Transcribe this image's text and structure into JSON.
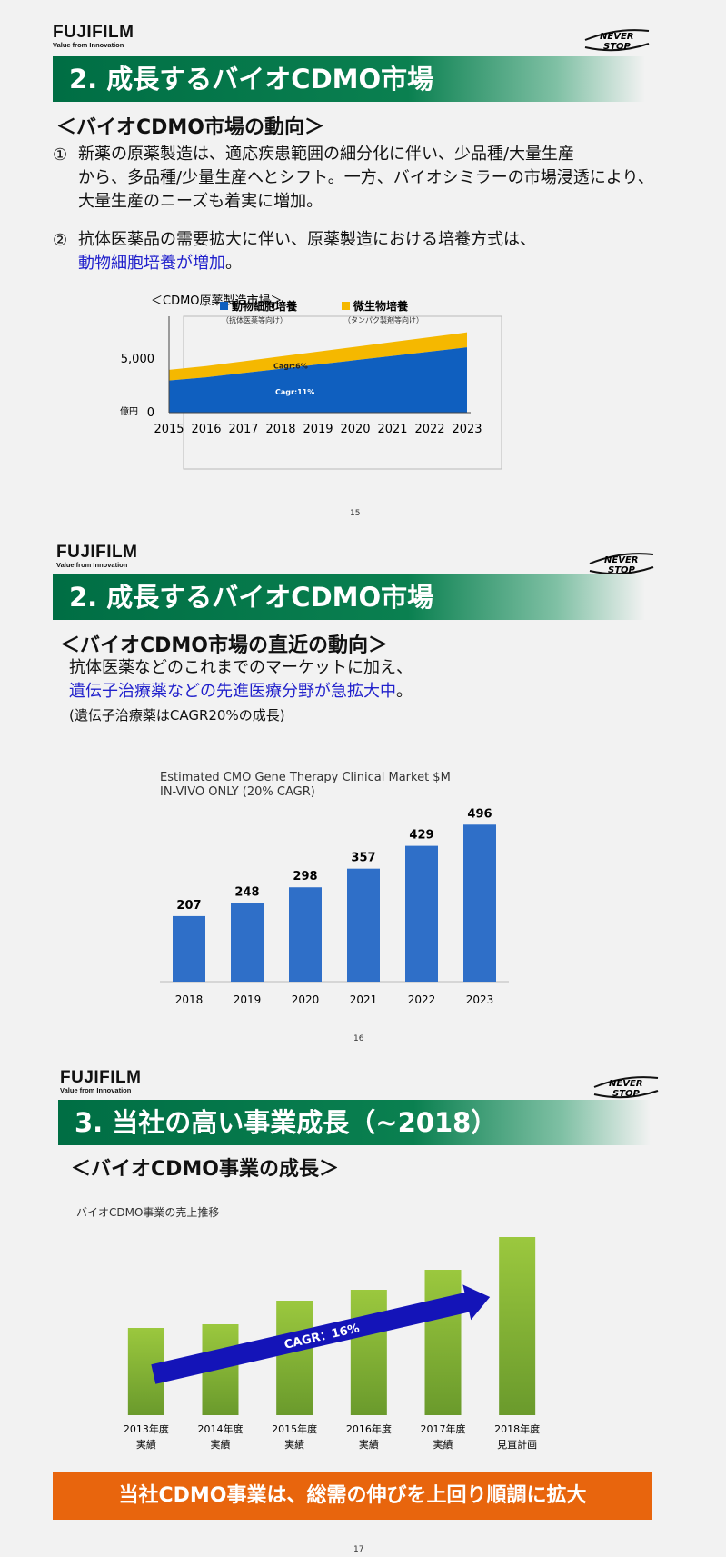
{
  "brand": {
    "name": "FUJIFILM",
    "tagline": "Value from Innovation",
    "never_stop_line1": "NEVER",
    "never_stop_line2": "STOP"
  },
  "slide1": {
    "title": "2. 成長するバイオCDMO市場",
    "heading": "＜バイオCDMO市場の動向＞",
    "item1_num": "①",
    "item1_line1": "新薬の原薬製造は、適応疾患範囲の細分化に伴い、少品種/大量生産",
    "item1_line2": "から、多品種/少量生産へとシフト。一方、バイオシミラーの市場浸透により、",
    "item1_line3": "大量生産のニーズも着実に増加。",
    "item2_num": "②",
    "item2_line1": "抗体医薬品の需要拡大に伴い、原薬製造における培養方式は、",
    "item2_line2": "動物細胞培養が増加",
    "item2_line2_end": "。",
    "page_number": "15"
  },
  "chart1": {
    "type": "area",
    "title": "＜CDMO原薬製造市場＞",
    "x": [
      "2015",
      "2016",
      "2017",
      "2018",
      "2019",
      "2020",
      "2021",
      "2022",
      "2023"
    ],
    "yticks": [
      "0",
      "5,000"
    ],
    "yunit": "億円",
    "ylim": [
      0,
      9000
    ],
    "series": [
      {
        "name": "動物細胞培養",
        "sublabel": "（抗体医薬等向け）",
        "color": "#0f5fbf",
        "values": [
          3000,
          3300,
          3700,
          4100,
          4500,
          4900,
          5300,
          5700,
          6100
        ],
        "annotation": "Cagr:11%"
      },
      {
        "name": "微生物培養",
        "sublabel": "（タンパク製剤等向け）",
        "color": "#f5b800",
        "values": [
          1000,
          1050,
          1100,
          1150,
          1200,
          1250,
          1300,
          1350,
          1400
        ],
        "annotation": "Cagr:6%"
      }
    ]
  },
  "slide2": {
    "title": "2. 成長するバイオCDMO市場",
    "heading": "＜バイオCDMO市場の直近の動向＞",
    "line1": "抗体医薬などのこれまでのマーケットに加え、",
    "line2": "遺伝子治療薬などの先進医療分野が急拡大中",
    "line2_end": "。",
    "line3": "(遺伝子治療薬はCAGR20%の成長)",
    "page_number": "16"
  },
  "chart2": {
    "type": "bar",
    "title_line1": "Estimated CMO Gene Therapy Clinical Market $M",
    "title_line2": "IN-VIVO ONLY (20% CAGR)",
    "categories": [
      "2018",
      "2019",
      "2020",
      "2021",
      "2022",
      "2023"
    ],
    "values": [
      207,
      248,
      298,
      357,
      429,
      496
    ],
    "value_labels": [
      "207",
      "248",
      "298",
      "357",
      "429",
      "496"
    ],
    "color": "#2f6fc8",
    "ylim": [
      0,
      560
    ]
  },
  "slide3": {
    "title": "3. 当社の高い事業成長（~2018）",
    "heading": "＜バイオCDMO事業の成長＞",
    "banner": "当社CDMO事業は、総需の伸びを上回り順調に拡大",
    "page_number": "17"
  },
  "chart3": {
    "type": "bar",
    "title": "バイオCDMO事業の売上推移",
    "categories": [
      "2013年度",
      "2014年度",
      "2015年度",
      "2016年度",
      "2017年度",
      "2018年度"
    ],
    "sublabels": [
      "実績",
      "実績",
      "実績",
      "実績",
      "実績",
      "見直計画"
    ],
    "values": [
      48,
      50,
      63,
      69,
      80,
      98
    ],
    "ylim": [
      0,
      100
    ],
    "color": "#7cb342",
    "arrow_label": "CAGR：16%"
  }
}
